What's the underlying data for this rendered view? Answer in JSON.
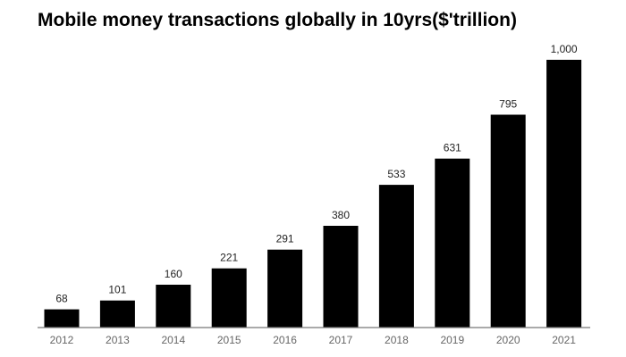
{
  "chart_data": {
    "type": "bar",
    "title": "Mobile money transactions globally in 10yrs($'trillion)",
    "xlabel": "",
    "ylabel": "",
    "categories": [
      "2012",
      "2013",
      "2014",
      "2015",
      "2016",
      "2017",
      "2018",
      "2019",
      "2020",
      "2021"
    ],
    "values": [
      68,
      101,
      160,
      221,
      291,
      380,
      533,
      631,
      795,
      1000
    ],
    "data_labels": [
      "68",
      "101",
      "160",
      "221",
      "291",
      "380",
      "533",
      "631",
      "795",
      "1,000"
    ],
    "ylim": [
      0,
      1000
    ],
    "grid": false,
    "bar_color": "#000000",
    "axis_color": "#777777"
  }
}
